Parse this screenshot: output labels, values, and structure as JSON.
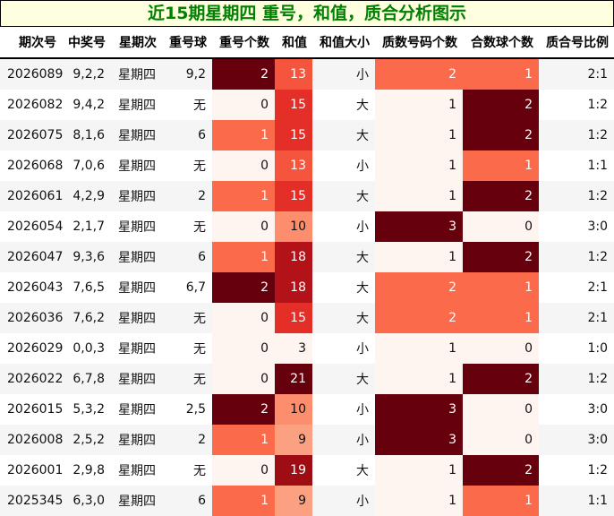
{
  "title": "近15期星期四 重号，和值，质合分析图示",
  "chart_data": {
    "type": "table",
    "title": "近15期星期四 重号，和值，质合分析图示",
    "columns": [
      "期次号",
      "中奖号",
      "星期次",
      "重号球",
      "重号个数",
      "和值",
      "和值大小",
      "质数号码个数",
      "合数球个数",
      "质合号比例"
    ],
    "rows": [
      [
        "2026089",
        "9,2,2",
        "星期四",
        "9,2",
        2,
        13,
        "小",
        2,
        1,
        "2:1"
      ],
      [
        "2026082",
        "9,4,2",
        "星期四",
        "无",
        0,
        15,
        "大",
        1,
        2,
        "1:2"
      ],
      [
        "2026075",
        "8,1,6",
        "星期四",
        "6",
        1,
        15,
        "大",
        1,
        2,
        "1:2"
      ],
      [
        "2026068",
        "7,0,6",
        "星期四",
        "无",
        0,
        13,
        "小",
        1,
        1,
        "1:1"
      ],
      [
        "2026061",
        "4,2,9",
        "星期四",
        "2",
        1,
        15,
        "大",
        1,
        2,
        "1:2"
      ],
      [
        "2026054",
        "2,1,7",
        "星期四",
        "无",
        0,
        10,
        "小",
        3,
        0,
        "3:0"
      ],
      [
        "2026047",
        "9,3,6",
        "星期四",
        "6",
        1,
        18,
        "大",
        1,
        2,
        "1:2"
      ],
      [
        "2026043",
        "7,6,5",
        "星期四",
        "6,7",
        2,
        18,
        "大",
        2,
        1,
        "2:1"
      ],
      [
        "2026036",
        "7,6,2",
        "星期四",
        "无",
        0,
        15,
        "大",
        2,
        1,
        "2:1"
      ],
      [
        "2026029",
        "0,0,3",
        "星期四",
        "无",
        0,
        3,
        "小",
        1,
        0,
        "1:0"
      ],
      [
        "2026022",
        "6,7,8",
        "星期四",
        "无",
        0,
        21,
        "大",
        1,
        2,
        "1:2"
      ],
      [
        "2026015",
        "5,3,2",
        "星期四",
        "2,5",
        2,
        10,
        "小",
        3,
        0,
        "3:0"
      ],
      [
        "2026008",
        "2,5,2",
        "星期四",
        "2",
        1,
        9,
        "小",
        3,
        0,
        "3:0"
      ],
      [
        "2026001",
        "2,9,8",
        "星期四",
        "无",
        0,
        19,
        "大",
        1,
        2,
        "1:2"
      ],
      [
        "2025345",
        "6,3,0",
        "星期四",
        "6",
        1,
        9,
        "小",
        1,
        1,
        "1:1"
      ]
    ],
    "heatmap_columns": [
      "重号个数",
      "和值",
      "质数号码个数",
      "合数球个数"
    ],
    "colormap": "Reds",
    "title_color": "#008000",
    "title_background": "#ffffe0"
  }
}
